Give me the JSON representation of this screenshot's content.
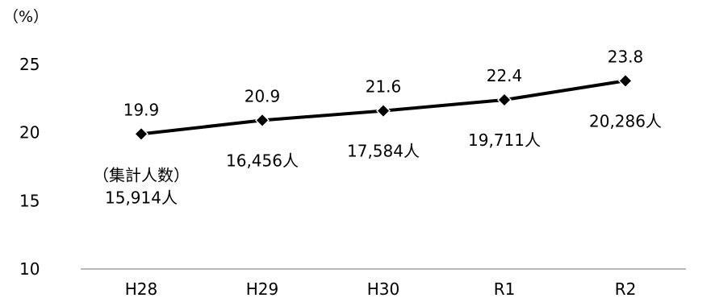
{
  "chart_data": {
    "type": "line",
    "title": "",
    "xlabel": "",
    "ylabel": "",
    "y_unit_label": "（%）",
    "categories": [
      "H28",
      "H29",
      "H30",
      "R1",
      "R2"
    ],
    "series": [
      {
        "values": [
          19.9,
          20.9,
          21.6,
          22.4,
          23.8
        ],
        "value_labels": [
          "19.9",
          "20.9",
          "21.6",
          "22.4",
          "23.8"
        ],
        "marker": "diamond",
        "color": "#000000"
      }
    ],
    "count_caption": "（集計人数）",
    "counts": [
      "15,914人",
      "16,456人",
      "17,584人",
      "19,711人",
      "20,286人"
    ],
    "ylim": [
      10,
      25
    ],
    "yticks": [
      "10",
      "15",
      "20",
      "25"
    ],
    "grid": false,
    "legend": "none"
  }
}
